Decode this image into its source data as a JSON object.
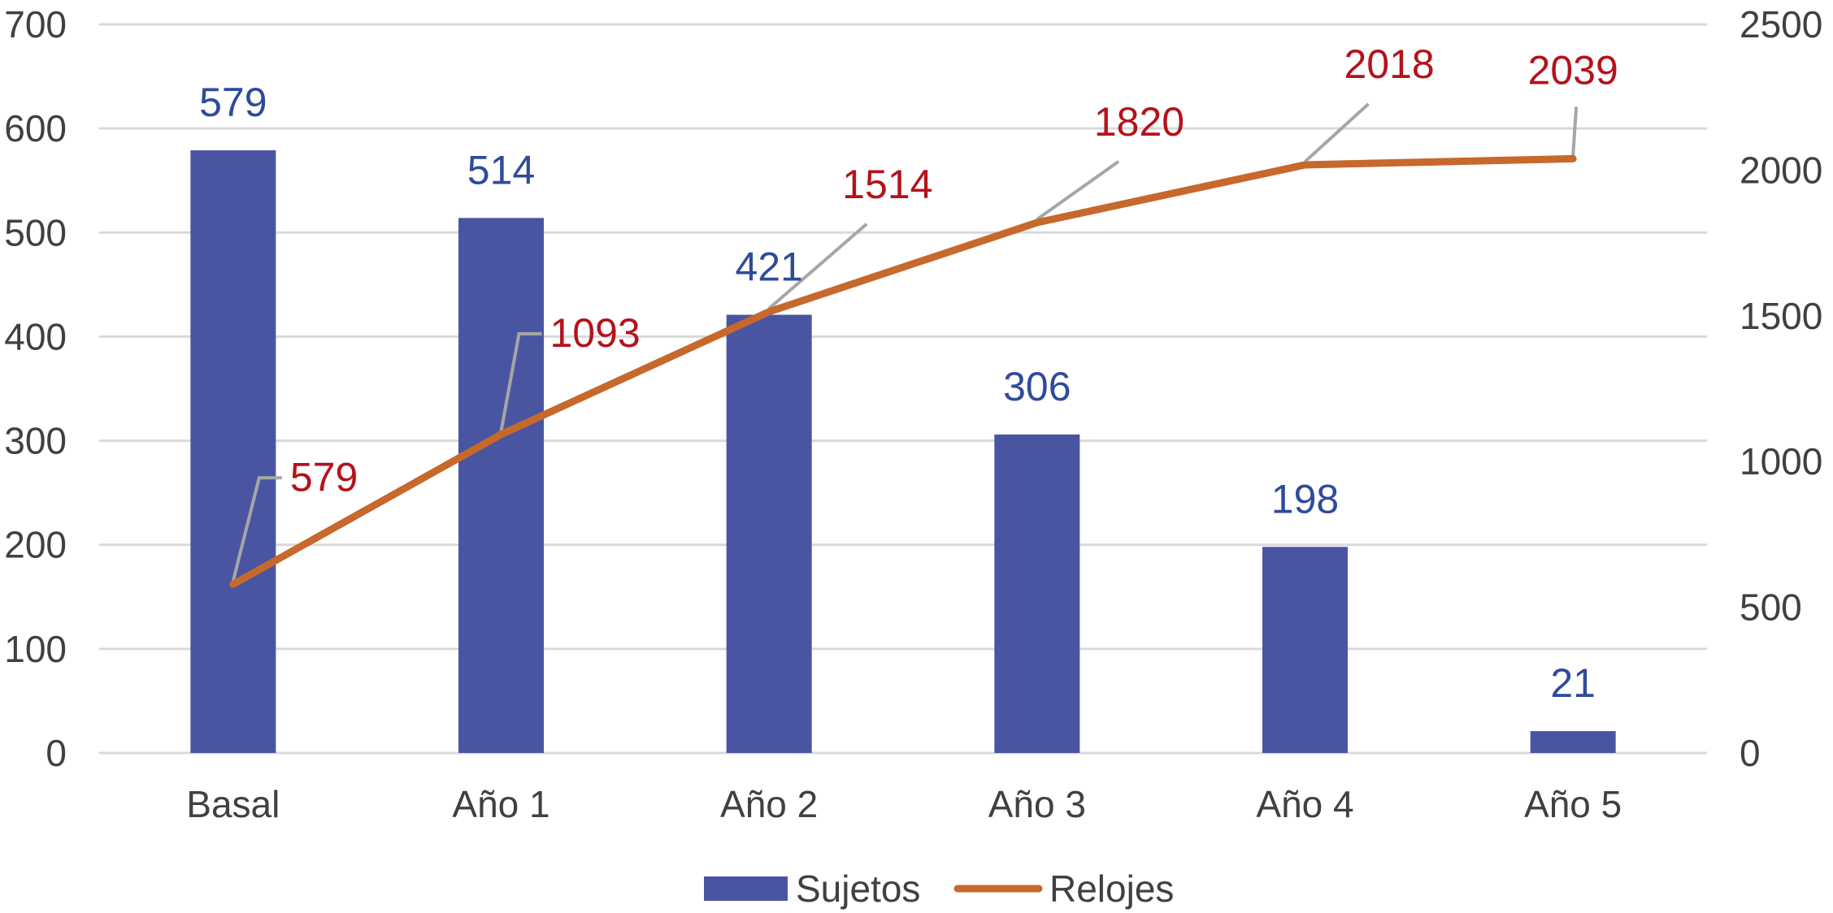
{
  "chart_data": {
    "type": "bar",
    "categories": [
      "Basal",
      "Año 1",
      "Año 2",
      "Año 3",
      "Año 4",
      "Año 5"
    ],
    "series": [
      {
        "name": "Sujetos",
        "type": "bar",
        "axis": "left",
        "values": [
          579,
          514,
          421,
          306,
          198,
          21
        ],
        "color": "#4A55A2"
      },
      {
        "name": "Relojes",
        "type": "line",
        "axis": "right",
        "values": [
          579,
          1093,
          1514,
          1820,
          2018,
          2039
        ],
        "color": "#C7682C"
      }
    ],
    "y_left": {
      "min": 0,
      "max": 700,
      "ticks": [
        "0",
        "100",
        "200",
        "300",
        "400",
        "500",
        "600",
        "700"
      ]
    },
    "y_right": {
      "min": 0,
      "max": 2500,
      "ticks": [
        "0",
        "500",
        "1000",
        "1500",
        "2000",
        "2500"
      ]
    },
    "bar_label_color": "#2F4B9A",
    "line_label_color": "#B4121B",
    "grid": true,
    "legend": "bottom"
  }
}
